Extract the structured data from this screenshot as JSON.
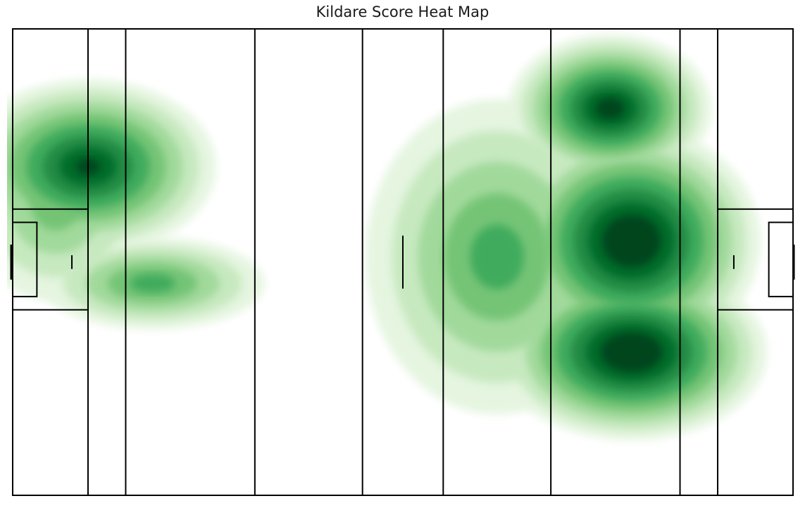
{
  "chart_data": {
    "type": "heatmap",
    "title": "Kildare Score Heat Map",
    "xlabel": "",
    "ylabel": "",
    "grid": false,
    "legend": "none",
    "colormap": [
      "#f7fcf5",
      "#e5f5e0",
      "#c7e9c0",
      "#a1d99b",
      "#74c476",
      "#41ab5d",
      "#238b45",
      "#006d2c",
      "#00441b"
    ],
    "line_color": "#000000",
    "density_levels": 9,
    "hotspots": [
      {
        "name": "left-upper",
        "x": 14,
        "y": 62,
        "weight": 0.85
      },
      {
        "name": "left-lower",
        "x": 26,
        "y": 40,
        "weight": 0.55
      },
      {
        "name": "left-wide",
        "x": 8,
        "y": 55,
        "weight": 0.45
      },
      {
        "name": "right-top",
        "x": 111,
        "y": 73,
        "weight": 0.9
      },
      {
        "name": "right-center",
        "x": 115,
        "y": 48,
        "weight": 1.0
      },
      {
        "name": "right-lower",
        "x": 115,
        "y": 27,
        "weight": 1.0
      },
      {
        "name": "right-outer",
        "x": 90,
        "y": 45,
        "weight": 0.55
      }
    ]
  }
}
